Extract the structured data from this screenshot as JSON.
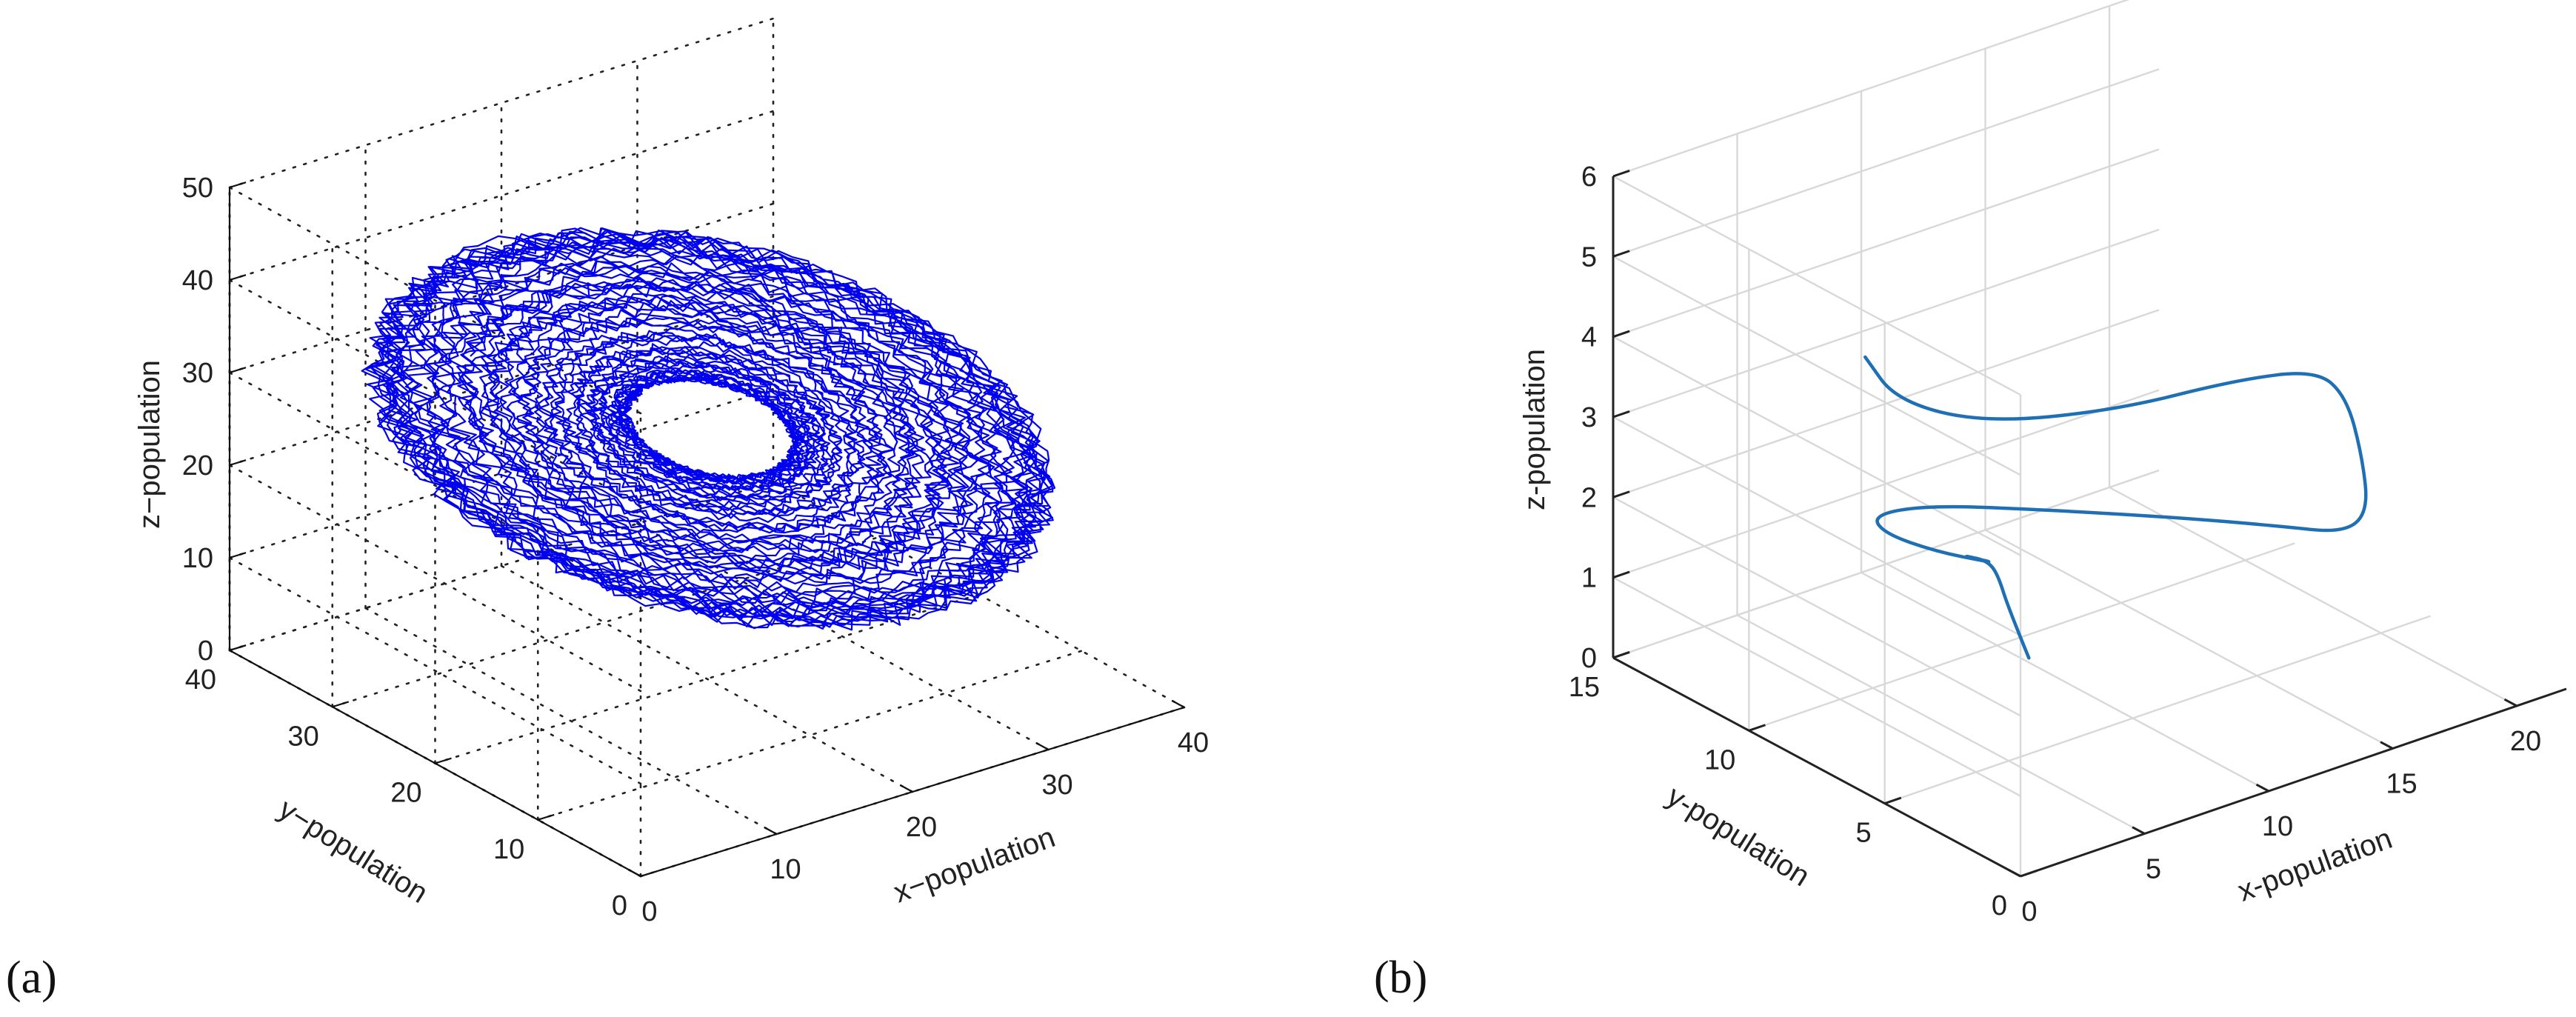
{
  "panels": [
    {
      "tag": "(a)"
    },
    {
      "tag": "(b)"
    }
  ],
  "chart_data": [
    {
      "type": "line",
      "projection": "3d",
      "x_label": "x−population",
      "y_label": "y−population",
      "z_label": "z−population",
      "xlim": [
        0,
        40
      ],
      "ylim": [
        0,
        40
      ],
      "zlim": [
        0,
        50
      ],
      "x_ticks": [
        "0",
        "10",
        "20",
        "30",
        "40"
      ],
      "y_ticks": [
        "0",
        "10",
        "20",
        "30",
        "40"
      ],
      "z_ticks": [
        "0",
        "10",
        "20",
        "30",
        "40",
        "50"
      ],
      "grid": true,
      "grid_style": "dotted",
      "line_color": "#0000ee",
      "series": [
        {
          "description_values": "chaotic attractor; trajectory spans roughly x 2–38, y 2–40, z 8–45",
          "x_range": [
            2,
            38
          ],
          "y_range": [
            2,
            40
          ],
          "z_range": [
            8,
            45
          ]
        }
      ]
    },
    {
      "type": "line",
      "projection": "3d",
      "x_label": "x-population",
      "y_label": "y-population",
      "z_label": "z-population",
      "xlim": [
        0,
        22
      ],
      "ylim": [
        0,
        15
      ],
      "zlim": [
        0,
        6
      ],
      "x_ticks": [
        "0",
        "5",
        "10",
        "15",
        "20"
      ],
      "y_ticks": [
        "0",
        "5",
        "10",
        "15"
      ],
      "z_ticks": [
        "0",
        "1",
        "2",
        "3",
        "4",
        "5",
        "6"
      ],
      "grid": true,
      "grid_style": "solid",
      "line_color": "#1f6fb4",
      "series": [
        {
          "x_range": [
            4,
            21
          ],
          "y_range": [
            6,
            11
          ],
          "z_range": [
            0.7,
            3.8
          ]
        }
      ]
    }
  ]
}
